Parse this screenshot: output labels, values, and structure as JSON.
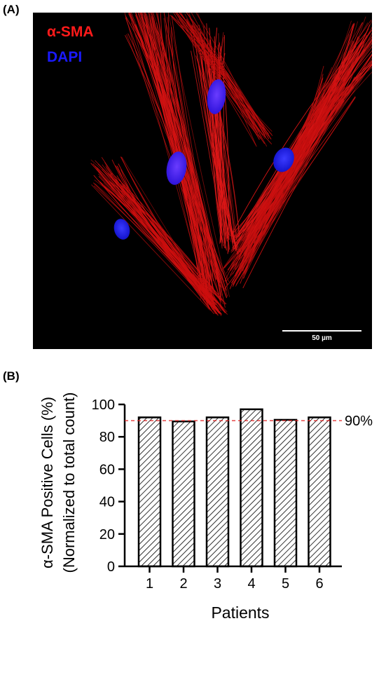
{
  "panel_a": {
    "label": "(A)",
    "legend": [
      {
        "label": "α-SMA",
        "color": "#ff1a1a"
      },
      {
        "label": "DAPI",
        "color": "#1a1aff"
      }
    ],
    "scale_bar_label": "50 µm",
    "background_color": "#000000"
  },
  "panel_b": {
    "label": "(B)"
  },
  "chart_data": {
    "type": "bar",
    "categories": [
      "1",
      "2",
      "3",
      "4",
      "5",
      "6"
    ],
    "values": [
      92,
      89.5,
      92,
      97,
      90.5,
      92
    ],
    "xlabel": "Patients",
    "ylabel_lines": [
      "α-SMA Positive Cells (%)",
      "(Normalized to total count)"
    ],
    "ylim": [
      0,
      100
    ],
    "yticks": [
      0,
      20,
      40,
      60,
      80,
      100
    ],
    "grid": false,
    "bar_fill": "hatched",
    "reference_line": {
      "value": 90,
      "label": "90%",
      "color": "#e02020",
      "style": "dashed"
    }
  }
}
